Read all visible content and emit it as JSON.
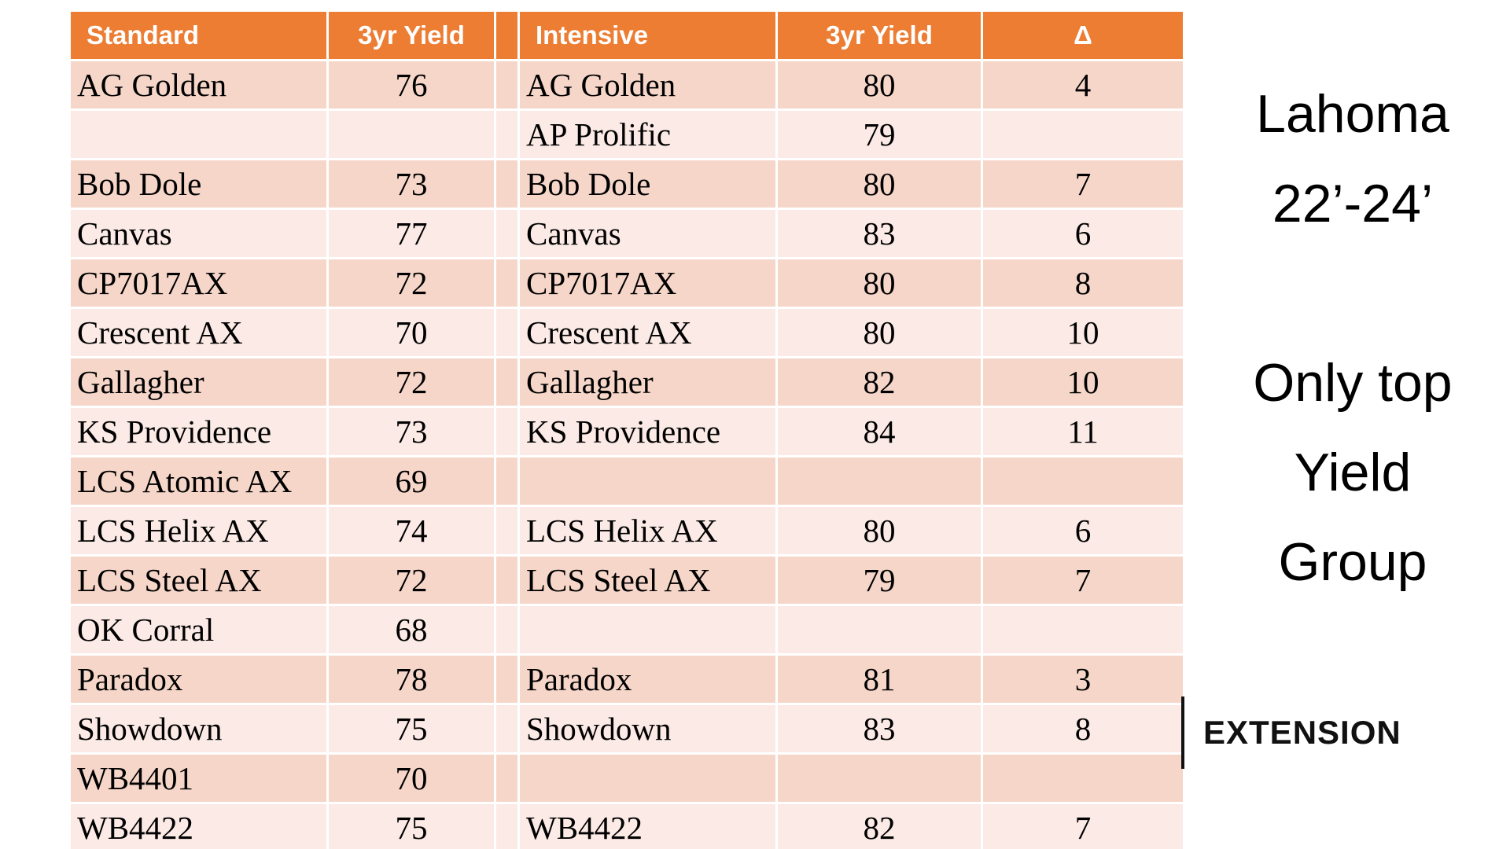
{
  "slide": {
    "background": "#FFFFFF"
  },
  "colors": {
    "header_orange": "#EC7D33",
    "row_dark": "#F6D6C9",
    "row_light": "#FBEAE5",
    "gridline": "#FFFFFF",
    "text": "#000000",
    "logo_black": "#111111"
  },
  "table": {
    "headers": [
      "Standard",
      "3yr Yield",
      "",
      "Intensive",
      "3yr Yield",
      "Δ"
    ],
    "rows": [
      [
        "AG Golden",
        "76",
        "",
        "AG Golden",
        "80",
        "4"
      ],
      [
        "",
        "",
        "",
        "AP Prolific",
        "79",
        ""
      ],
      [
        "Bob Dole",
        "73",
        "",
        "Bob Dole",
        "80",
        "7"
      ],
      [
        "Canvas",
        "77",
        "",
        "Canvas",
        "83",
        "6"
      ],
      [
        "CP7017AX",
        "72",
        "",
        "CP7017AX",
        "80",
        "8"
      ],
      [
        "Crescent AX",
        "70",
        "",
        "Crescent AX",
        "80",
        "10"
      ],
      [
        "Gallagher",
        "72",
        "",
        "Gallagher",
        "82",
        "10"
      ],
      [
        "KS Providence",
        "73",
        "",
        "KS Providence",
        "84",
        "11"
      ],
      [
        "LCS Atomic AX",
        "69",
        "",
        "",
        "",
        ""
      ],
      [
        "LCS Helix AX",
        "74",
        "",
        "LCS Helix AX",
        "80",
        "6"
      ],
      [
        "LCS Steel AX",
        "72",
        "",
        "LCS Steel AX",
        "79",
        "7"
      ],
      [
        "OK Corral",
        "68",
        "",
        "",
        "",
        ""
      ],
      [
        "Paradox",
        "78",
        "",
        "Paradox",
        "81",
        "3"
      ],
      [
        "Showdown",
        "75",
        "",
        "Showdown",
        "83",
        "8"
      ],
      [
        "WB4401",
        "70",
        "",
        "",
        "",
        ""
      ],
      [
        "WB4422",
        "75",
        "",
        "WB4422",
        "82",
        "7"
      ]
    ]
  },
  "side_text": {
    "line1": "Lahoma",
    "line2": "22’-24’",
    "line3": "Only top",
    "line4": "Yield",
    "line5": "Group"
  },
  "logo": {
    "label": "EXTENSION"
  },
  "chart_data": {
    "type": "table",
    "columns": [
      "Standard",
      "3yr Yield",
      "Intensive",
      "3yr Yield",
      "Δ"
    ],
    "rows": [
      [
        "AG Golden",
        76,
        "AG Golden",
        80,
        4
      ],
      [
        "",
        null,
        "AP Prolific",
        79,
        null
      ],
      [
        "Bob Dole",
        73,
        "Bob Dole",
        80,
        7
      ],
      [
        "Canvas",
        77,
        "Canvas",
        83,
        6
      ],
      [
        "CP7017AX",
        72,
        "CP7017AX",
        80,
        8
      ],
      [
        "Crescent AX",
        70,
        "Crescent AX",
        80,
        10
      ],
      [
        "Gallagher",
        72,
        "Gallagher",
        82,
        10
      ],
      [
        "KS Providence",
        73,
        "KS Providence",
        84,
        11
      ],
      [
        "LCS Atomic AX",
        69,
        "",
        null,
        null
      ],
      [
        "LCS Helix AX",
        74,
        "LCS Helix AX",
        80,
        6
      ],
      [
        "LCS Steel AX",
        72,
        "LCS Steel AX",
        79,
        7
      ],
      [
        "OK Corral",
        68,
        "",
        null,
        null
      ],
      [
        "Paradox",
        78,
        "Paradox",
        81,
        3
      ],
      [
        "Showdown",
        75,
        "Showdown",
        83,
        8
      ],
      [
        "WB4401",
        70,
        "",
        null,
        null
      ],
      [
        "WB4422",
        75,
        "WB4422",
        82,
        7
      ]
    ],
    "annotations": [
      "Lahoma 22’-24’",
      "Only top Yield Group",
      "EXTENSION"
    ],
    "legend_position": "none",
    "grid": true
  }
}
